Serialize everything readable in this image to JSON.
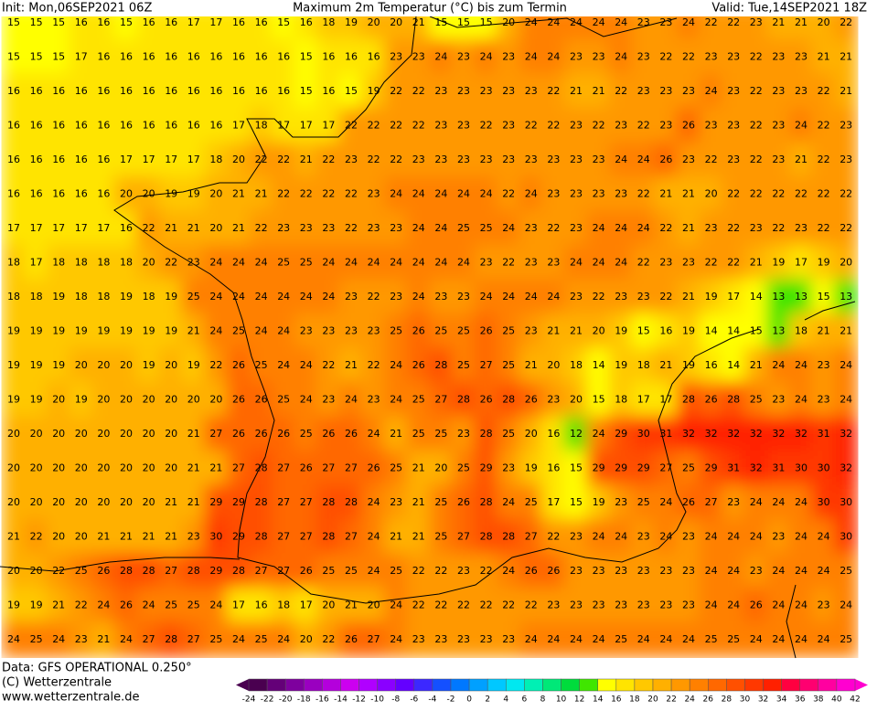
{
  "header": {
    "init": "Init: Mon,06SEP2021 06Z",
    "title": "Maximum 2m Temperatur (°C) bis zum Termin",
    "valid": "Valid: Tue,14SEP2021 18Z"
  },
  "footer": {
    "data": "Data: GFS OPERATIONAL 0.250°",
    "copyright": "(C) Wetterzentrale",
    "url": "www.wetterzentrale.de"
  },
  "colorbar": {
    "ticks": [
      -24,
      -22,
      -20,
      -18,
      -16,
      -14,
      -12,
      -10,
      -8,
      -6,
      -4,
      -2,
      0,
      2,
      4,
      6,
      8,
      10,
      12,
      14,
      16,
      18,
      20,
      22,
      24,
      26,
      28,
      30,
      32,
      34,
      36,
      38,
      40,
      42
    ],
    "colors": [
      "#4a0050",
      "#640078",
      "#7e009e",
      "#9a00c0",
      "#b400dc",
      "#cc00f0",
      "#b000ff",
      "#8a00ff",
      "#6400ff",
      "#3c28ff",
      "#1450ff",
      "#0078ff",
      "#00a0ff",
      "#00c8ff",
      "#00e8f0",
      "#00f0b4",
      "#00e878",
      "#00dc3c",
      "#40e600",
      "#ffff00",
      "#ffe400",
      "#ffc800",
      "#ffb000",
      "#ff9800",
      "#ff8000",
      "#ff6800",
      "#ff5000",
      "#ff3800",
      "#ff2000",
      "#ff0040",
      "#ff0070",
      "#ff00a0",
      "#ff00d0"
    ]
  },
  "grid": {
    "rows": [
      [
        15,
        15,
        15,
        16,
        16,
        15,
        16,
        16,
        17,
        17,
        16,
        16,
        15,
        16,
        18,
        19,
        20,
        20,
        21,
        15,
        15,
        15,
        20,
        24,
        24,
        24,
        24,
        24,
        23,
        23,
        24,
        22,
        22,
        23,
        21,
        21,
        20,
        22
      ],
      [
        15,
        15,
        15,
        17,
        16,
        16,
        16,
        16,
        16,
        16,
        16,
        16,
        16,
        15,
        16,
        16,
        16,
        23,
        23,
        24,
        23,
        24,
        23,
        24,
        24,
        23,
        23,
        24,
        23,
        22,
        22,
        23,
        23,
        22,
        23,
        23,
        21,
        21
      ],
      [
        16,
        16,
        16,
        16,
        16,
        16,
        16,
        16,
        16,
        16,
        16,
        16,
        16,
        15,
        16,
        15,
        19,
        22,
        22,
        23,
        23,
        23,
        23,
        23,
        22,
        21,
        21,
        22,
        23,
        23,
        23,
        24,
        23,
        22,
        23,
        23,
        22,
        21
      ],
      [
        16,
        16,
        16,
        16,
        16,
        16,
        16,
        16,
        16,
        16,
        17,
        18,
        17,
        17,
        17,
        22,
        22,
        22,
        22,
        23,
        23,
        22,
        23,
        22,
        22,
        23,
        22,
        23,
        22,
        23,
        26,
        23,
        23,
        22,
        23,
        24,
        22,
        23
      ],
      [
        16,
        16,
        16,
        16,
        16,
        17,
        17,
        17,
        17,
        18,
        20,
        22,
        22,
        21,
        22,
        23,
        22,
        22,
        23,
        23,
        23,
        23,
        23,
        23,
        23,
        23,
        23,
        24,
        24,
        26,
        23,
        22,
        23,
        22,
        23,
        21,
        22,
        23
      ],
      [
        16,
        16,
        16,
        16,
        16,
        20,
        20,
        19,
        19,
        20,
        21,
        21,
        22,
        22,
        22,
        22,
        23,
        24,
        24,
        24,
        24,
        24,
        22,
        24,
        23,
        23,
        23,
        23,
        22,
        21,
        21,
        20,
        22,
        22,
        22,
        22,
        22,
        22
      ],
      [
        17,
        17,
        17,
        17,
        17,
        16,
        22,
        21,
        21,
        20,
        21,
        22,
        23,
        23,
        23,
        22,
        23,
        23,
        24,
        24,
        25,
        25,
        24,
        23,
        22,
        23,
        24,
        24,
        24,
        22,
        21,
        23,
        22,
        23,
        22,
        23,
        22,
        22
      ],
      [
        18,
        17,
        18,
        18,
        18,
        18,
        20,
        22,
        23,
        24,
        24,
        24,
        25,
        25,
        24,
        24,
        24,
        24,
        24,
        24,
        24,
        23,
        22,
        23,
        23,
        24,
        24,
        24,
        22,
        23,
        23,
        22,
        22,
        21,
        19,
        17,
        19,
        20
      ],
      [
        18,
        18,
        19,
        18,
        18,
        19,
        18,
        19,
        25,
        24,
        24,
        24,
        24,
        24,
        24,
        23,
        22,
        23,
        24,
        23,
        23,
        24,
        24,
        24,
        24,
        23,
        22,
        23,
        23,
        22,
        21,
        19,
        17,
        14,
        13,
        13,
        15,
        13
      ],
      [
        19,
        19,
        19,
        19,
        19,
        19,
        19,
        19,
        21,
        24,
        25,
        24,
        24,
        23,
        23,
        23,
        23,
        25,
        26,
        25,
        25,
        26,
        25,
        23,
        21,
        21,
        20,
        19,
        15,
        16,
        19,
        14,
        14,
        15,
        13,
        18,
        21,
        21
      ],
      [
        19,
        19,
        19,
        20,
        20,
        20,
        19,
        20,
        19,
        22,
        26,
        25,
        24,
        24,
        22,
        21,
        22,
        24,
        26,
        28,
        25,
        27,
        25,
        21,
        20,
        18,
        14,
        19,
        18,
        21,
        19,
        16,
        14,
        21,
        24,
        24,
        23,
        24
      ],
      [
        19,
        19,
        20,
        19,
        20,
        20,
        20,
        20,
        20,
        20,
        26,
        26,
        25,
        24,
        23,
        24,
        23,
        24,
        25,
        27,
        28,
        26,
        28,
        26,
        23,
        20,
        15,
        18,
        17,
        17,
        28,
        26,
        28,
        25,
        23,
        24,
        23,
        24
      ],
      [
        20,
        20,
        20,
        20,
        20,
        20,
        20,
        20,
        21,
        27,
        26,
        26,
        26,
        25,
        26,
        26,
        24,
        21,
        25,
        25,
        23,
        28,
        25,
        20,
        16,
        12,
        24,
        29,
        30,
        31,
        32,
        32,
        32,
        32,
        32,
        32,
        31,
        32
      ],
      [
        20,
        20,
        20,
        20,
        20,
        20,
        20,
        20,
        21,
        21,
        27,
        28,
        27,
        26,
        27,
        27,
        26,
        25,
        21,
        20,
        25,
        29,
        23,
        19,
        16,
        15,
        29,
        29,
        29,
        27,
        25,
        29,
        31,
        32,
        31,
        30,
        30,
        32
      ],
      [
        20,
        20,
        20,
        20,
        20,
        20,
        20,
        21,
        21,
        29,
        29,
        28,
        27,
        27,
        28,
        28,
        24,
        23,
        21,
        25,
        26,
        28,
        24,
        25,
        17,
        15,
        19,
        23,
        25,
        24,
        26,
        27,
        23,
        24,
        24,
        24,
        30,
        30
      ],
      [
        21,
        22,
        20,
        20,
        21,
        21,
        21,
        21,
        23,
        30,
        29,
        28,
        27,
        27,
        28,
        27,
        24,
        21,
        21,
        25,
        27,
        28,
        28,
        27,
        22,
        23,
        24,
        24,
        23,
        24,
        23,
        24,
        24,
        24,
        23,
        24,
        24,
        30
      ],
      [
        20,
        20,
        22,
        25,
        26,
        28,
        28,
        27,
        28,
        29,
        28,
        27,
        27,
        26,
        25,
        25,
        24,
        25,
        22,
        22,
        23,
        22,
        24,
        26,
        26,
        23,
        23,
        23,
        23,
        23,
        23,
        24,
        24,
        23,
        24,
        24,
        24,
        25
      ],
      [
        19,
        19,
        21,
        22,
        24,
        26,
        24,
        25,
        25,
        24,
        17,
        16,
        18,
        17,
        20,
        21,
        20,
        24,
        22,
        22,
        22,
        22,
        22,
        22,
        23,
        23,
        23,
        23,
        23,
        23,
        23,
        24,
        24,
        26,
        24,
        24,
        23,
        24
      ],
      [
        24,
        25,
        24,
        23,
        21,
        24,
        27,
        28,
        27,
        25,
        24,
        25,
        24,
        20,
        22,
        26,
        27,
        24,
        23,
        23,
        23,
        23,
        23,
        24,
        24,
        24,
        24,
        25,
        24,
        24,
        24,
        25,
        25,
        24,
        24,
        24,
        24,
        25
      ]
    ]
  }
}
